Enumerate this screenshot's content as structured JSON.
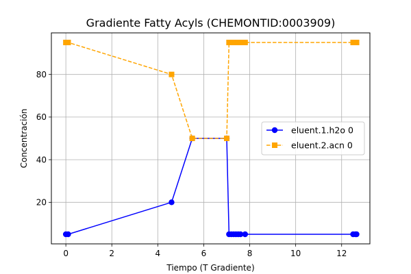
{
  "chart_data": {
    "type": "line",
    "title": "Gradiente Fatty Acyls (CHEMONTID:0003909)",
    "xlabel": "Tiempo (T Gradiente)",
    "ylabel": "Concentración",
    "xlim": [
      -0.63,
      13.23
    ],
    "ylim": [
      0.5,
      99.5
    ],
    "xticks": [
      0,
      2,
      4,
      6,
      8,
      10,
      12
    ],
    "yticks": [
      20,
      40,
      60,
      80
    ],
    "grid": true,
    "legend_position": "center-right",
    "series": [
      {
        "name": "eluent.1.h2o 0",
        "color": "#0000ff",
        "style": "solid",
        "marker": "circle",
        "points": [
          [
            0,
            5
          ],
          [
            0.1,
            5
          ],
          [
            4.6,
            20
          ],
          [
            5.5,
            50
          ],
          [
            7.0,
            50
          ],
          [
            7.1,
            5
          ],
          [
            7.2,
            5
          ],
          [
            7.3,
            5
          ],
          [
            7.4,
            5
          ],
          [
            7.5,
            5
          ],
          [
            7.6,
            5
          ],
          [
            7.8,
            5
          ],
          [
            12.5,
            5
          ],
          [
            12.6,
            5
          ],
          [
            12.65,
            5
          ]
        ]
      },
      {
        "name": "eluent.2.acn 0",
        "color": "#ffa500",
        "style": "dashed",
        "marker": "square",
        "points": [
          [
            0,
            95
          ],
          [
            0.1,
            95
          ],
          [
            4.6,
            80
          ],
          [
            5.5,
            50
          ],
          [
            7.0,
            50
          ],
          [
            7.1,
            95
          ],
          [
            7.2,
            95
          ],
          [
            7.3,
            95
          ],
          [
            7.4,
            95
          ],
          [
            7.5,
            95
          ],
          [
            7.6,
            95
          ],
          [
            7.8,
            95
          ],
          [
            12.5,
            95
          ],
          [
            12.6,
            95
          ],
          [
            12.65,
            95
          ]
        ]
      }
    ]
  }
}
